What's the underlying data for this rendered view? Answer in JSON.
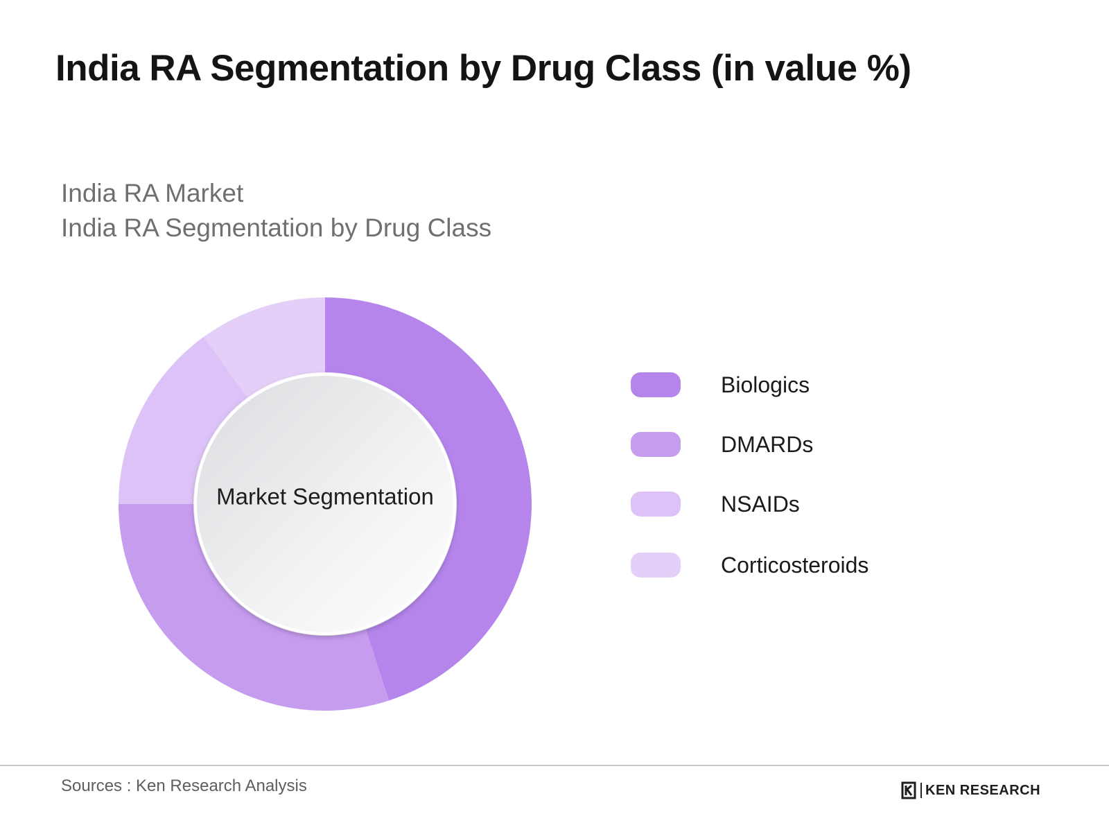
{
  "page": {
    "title": "India RA Segmentation by Drug Class (in value %)",
    "subtitle_line1": "India RA Market",
    "subtitle_line2": "India RA Segmentation by Drug Class"
  },
  "chart_data": {
    "type": "pie",
    "variant": "donut",
    "center_label": "Market Segmentation",
    "categories": [
      "Biologics",
      "DMARDs",
      "NSAIDs",
      "Corticosteroids"
    ],
    "values": [
      45,
      30,
      15,
      10
    ],
    "unit": "%",
    "colors": [
      "#b585ec",
      "#c69cef",
      "#dcc2f6",
      "#e4cff8"
    ],
    "legend_position": "right"
  },
  "footer": {
    "source": "Sources : Ken Research Analysis",
    "brand": "KEN RESEARCH"
  }
}
